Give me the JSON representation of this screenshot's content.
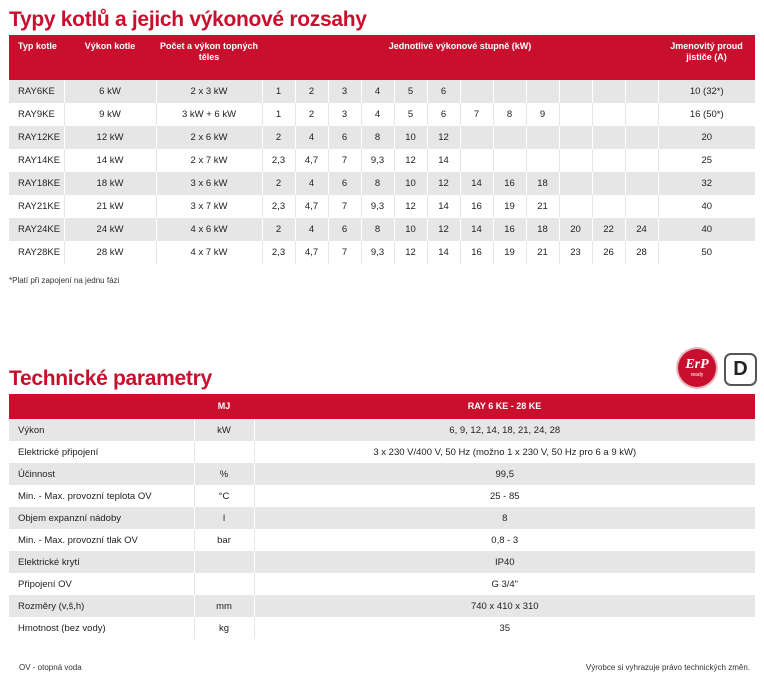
{
  "boilers": {
    "title": "Typy kotlů a jejich výkonové rozsahy",
    "headers": {
      "type": "Typ kotle",
      "power": "Výkon kotle",
      "heaters": "Počet a výkon topných těles",
      "stages": "Jednotlivé výkonové stupně (kW)",
      "breaker": "Jmenovitý proud jističe (A)"
    },
    "rows": [
      {
        "type": "RAY6KE",
        "power": "6 kW",
        "heaters": "2 x 3 kW",
        "stages": [
          "1",
          "2",
          "3",
          "4",
          "5",
          "6",
          "",
          "",
          "",
          "",
          "",
          ""
        ],
        "breaker": "10 (32*)"
      },
      {
        "type": "RAY9KE",
        "power": "9 kW",
        "heaters": "3 kW + 6 kW",
        "stages": [
          "1",
          "2",
          "3",
          "4",
          "5",
          "6",
          "7",
          "8",
          "9",
          "",
          "",
          ""
        ],
        "breaker": "16 (50*)"
      },
      {
        "type": "RAY12KE",
        "power": "12 kW",
        "heaters": "2 x 6 kW",
        "stages": [
          "2",
          "4",
          "6",
          "8",
          "10",
          "12",
          "",
          "",
          "",
          "",
          "",
          ""
        ],
        "breaker": "20"
      },
      {
        "type": "RAY14KE",
        "power": "14 kW",
        "heaters": "2 x 7 kW",
        "stages": [
          "2,3",
          "4,7",
          "7",
          "9,3",
          "12",
          "14",
          "",
          "",
          "",
          "",
          "",
          ""
        ],
        "breaker": "25"
      },
      {
        "type": "RAY18KE",
        "power": "18 kW",
        "heaters": "3 x 6 kW",
        "stages": [
          "2",
          "4",
          "6",
          "8",
          "10",
          "12",
          "14",
          "16",
          "18",
          "",
          "",
          ""
        ],
        "breaker": "32"
      },
      {
        "type": "RAY21KE",
        "power": "21 kW",
        "heaters": "3 x 7 kW",
        "stages": [
          "2,3",
          "4,7",
          "7",
          "9,3",
          "12",
          "14",
          "16",
          "19",
          "21",
          "",
          "",
          ""
        ],
        "breaker": "40"
      },
      {
        "type": "RAY24KE",
        "power": "24 kW",
        "heaters": "4 x 6 kW",
        "stages": [
          "2",
          "4",
          "6",
          "8",
          "10",
          "12",
          "14",
          "16",
          "18",
          "20",
          "22",
          "24"
        ],
        "breaker": "40"
      },
      {
        "type": "RAY28KE",
        "power": "28 kW",
        "heaters": "4 x 7 kW",
        "stages": [
          "2,3",
          "4,7",
          "7",
          "9,3",
          "12",
          "14",
          "16",
          "19",
          "21",
          "23",
          "26",
          "28"
        ],
        "breaker": "50"
      }
    ],
    "footnote": "*Platí při zapojení na jednu fázi"
  },
  "tech": {
    "title": "Technické parametry",
    "erp_label": "ErP",
    "erp_sub": "ready",
    "energy_class": "D",
    "headers": {
      "param": "",
      "unit": "MJ",
      "value": "RAY 6 KE - 28 KE"
    },
    "rows": [
      {
        "param": "Výkon",
        "unit": "kW",
        "value": "6, 9, 12, 14, 18, 21, 24, 28"
      },
      {
        "param": "Elektrické připojení",
        "unit": "",
        "value": "3 x 230 V/400 V, 50 Hz (možno 1 x 230 V, 50 Hz pro 6 a 9 kW)"
      },
      {
        "param": "Účinnost",
        "unit": "%",
        "value": "99,5"
      },
      {
        "param": "Min. - Max. provozní teplota OV",
        "unit": "°C",
        "value": "25 - 85"
      },
      {
        "param": "Objem expanzní nádoby",
        "unit": "l",
        "value": "8"
      },
      {
        "param": "Min. - Max. provozní tlak OV",
        "unit": "bar",
        "value": "0,8 - 3"
      },
      {
        "param": "Elektrické krytí",
        "unit": "",
        "value": "IP40"
      },
      {
        "param": "Připojení OV",
        "unit": "",
        "value": "G 3/4\""
      },
      {
        "param": "Rozměry (v,š,h)",
        "unit": "mm",
        "value": "740 x 410 x 310"
      },
      {
        "param": "Hmotnost (bez vody)",
        "unit": "kg",
        "value": "35"
      }
    ],
    "footnote_left": "OV - otopná voda",
    "footnote_right": "Výrobce si vyhrazuje právo technických změn."
  }
}
